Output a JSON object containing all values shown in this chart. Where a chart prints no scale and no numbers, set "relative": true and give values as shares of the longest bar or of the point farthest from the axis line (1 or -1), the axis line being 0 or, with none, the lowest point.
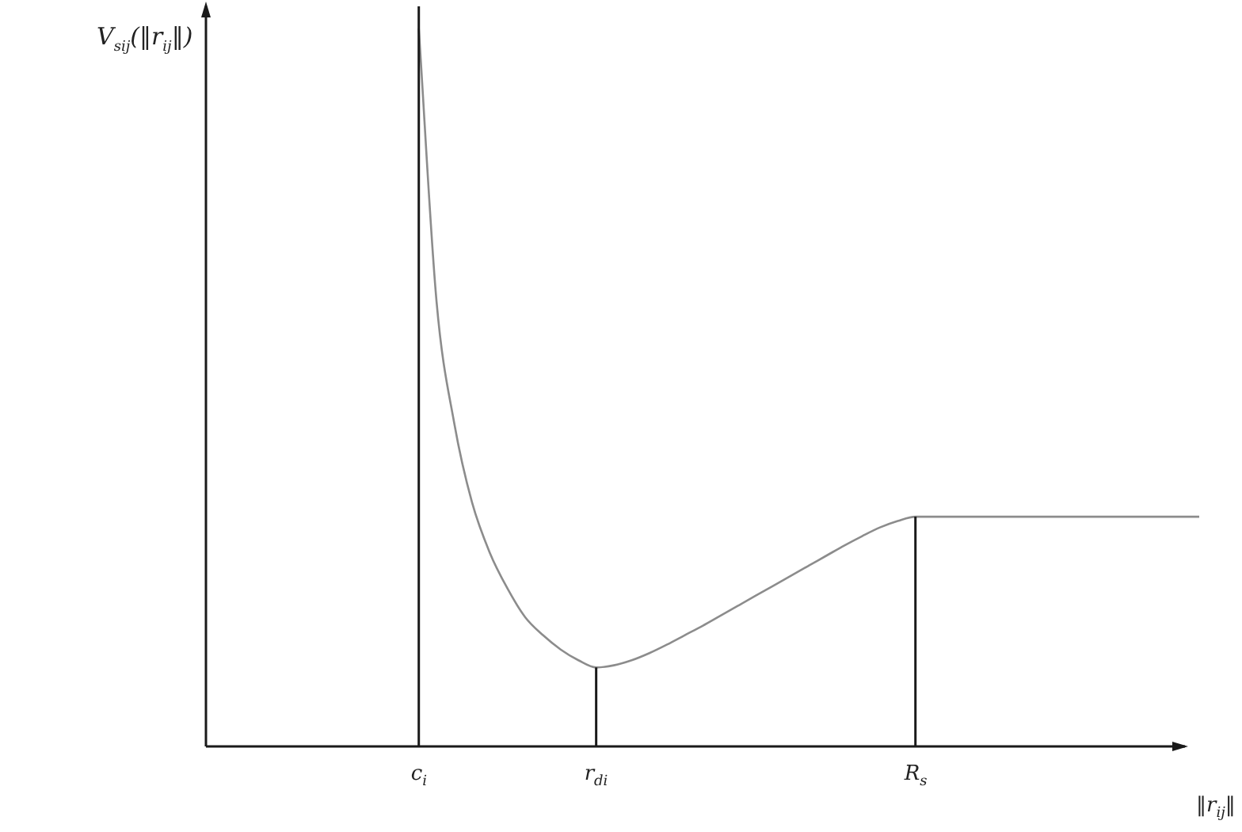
{
  "chart_data": {
    "type": "line",
    "relative": true,
    "xlabel": "‖r$_{ij}$‖",
    "ylabel": "V$_{sij}$(‖r$_{ij}$‖)",
    "categories": [
      null,
      null,
      null,
      null,
      null,
      null,
      null,
      null,
      null,
      null,
      null,
      null,
      "c$_{i}$",
      null,
      null,
      null,
      null,
      null,
      null,
      null,
      null,
      null,
      "r$_{di}$",
      null,
      null,
      null,
      null,
      null,
      null,
      null,
      null,
      null,
      null,
      null,
      null,
      null,
      null,
      null,
      null,
      null,
      "R$_{s}$",
      null,
      null,
      null,
      null,
      null,
      null,
      null,
      null,
      null,
      null,
      null,
      null,
      null,
      null,
      null,
      null
    ],
    "series": [
      {
        "color": "#8c8c8c",
        "values": [
          null,
          null,
          null,
          null,
          null,
          null,
          null,
          null,
          null,
          null,
          null,
          null,
          1.0,
          0.62,
          0.45,
          0.34,
          0.27,
          0.22,
          0.18,
          0.155,
          0.135,
          0.12,
          0.11,
          0.113,
          0.12,
          0.13,
          0.142,
          0.155,
          0.168,
          0.182,
          0.196,
          0.21,
          0.224,
          0.238,
          0.252,
          0.266,
          0.28,
          0.293,
          0.305,
          0.314,
          0.32,
          0.32,
          0.32,
          0.32,
          0.32,
          0.32,
          0.32,
          0.32,
          0.32,
          0.32,
          0.32,
          0.32,
          0.32,
          0.32,
          0.32,
          0.32,
          0.32
        ]
      }
    ],
    "ref_lines": [
      {
        "axis": "x",
        "value": "c$_{i}$",
        "color": "#1a1a1a"
      },
      {
        "axis": "x",
        "value": "r$_{di}$",
        "color": "#1a1a1a"
      },
      {
        "axis": "x",
        "value": "R$_{s}$",
        "color": "#1a1a1a"
      }
    ],
    "marker": "none",
    "line_style": "solid"
  }
}
